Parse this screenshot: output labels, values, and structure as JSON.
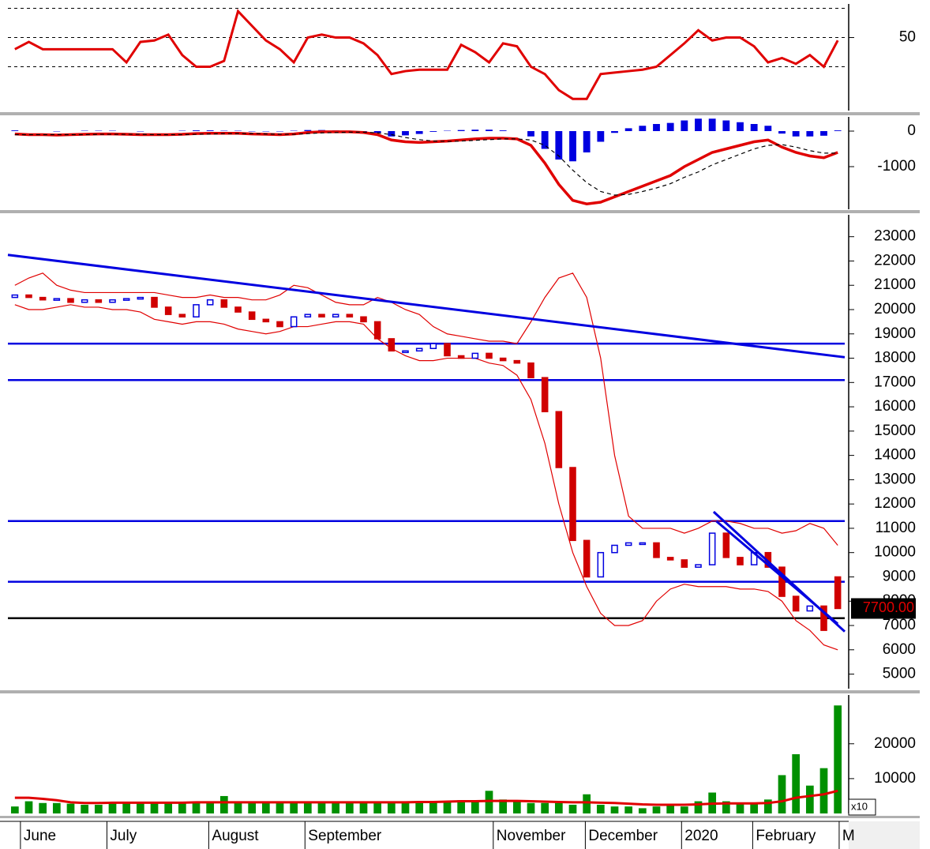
{
  "chart_data": [
    {
      "type": "line",
      "ylim": [
        0,
        73
      ],
      "yticks": [
        50
      ],
      "reference_lines": [
        30,
        50,
        70
      ],
      "series": [
        {
          "color": "#e00000",
          "values": [
            42,
            47,
            42,
            42,
            42,
            42,
            42,
            42,
            33,
            47,
            48,
            52,
            38,
            30,
            30,
            34,
            68,
            58,
            48,
            42,
            33,
            50,
            52,
            50,
            50,
            46,
            38,
            25,
            27,
            28,
            28,
            28,
            45,
            40,
            33,
            46,
            44,
            30,
            25,
            14,
            8,
            8,
            25,
            26,
            27,
            28,
            30,
            38,
            46,
            55,
            48,
            50,
            50,
            44,
            33,
            36,
            32,
            38,
            30,
            48
          ]
        }
      ]
    },
    {
      "type": "macd",
      "ylim": [
        -2200,
        400
      ],
      "yticks": [
        0,
        -1000
      ],
      "histogram": {
        "color": "#0000e0",
        "values": [
          20,
          0,
          0,
          -10,
          0,
          10,
          10,
          10,
          0,
          -10,
          0,
          0,
          10,
          20,
          20,
          10,
          10,
          -10,
          -10,
          -10,
          10,
          30,
          30,
          20,
          10,
          -10,
          -50,
          -150,
          -120,
          -80,
          -20,
          10,
          30,
          40,
          40,
          20,
          0,
          -150,
          -500,
          -800,
          -850,
          -600,
          -300,
          -50,
          80,
          150,
          200,
          230,
          300,
          350,
          350,
          300,
          250,
          200,
          150,
          -70,
          -150,
          -150,
          -130,
          20
        ]
      },
      "series": [
        {
          "color": "#e00000",
          "values": [
            -80,
            -100,
            -100,
            -110,
            -100,
            -90,
            -80,
            -80,
            -90,
            -100,
            -100,
            -100,
            -90,
            -70,
            -60,
            -60,
            -60,
            -80,
            -90,
            -100,
            -80,
            -40,
            -20,
            -20,
            -20,
            -40,
            -100,
            -250,
            -300,
            -320,
            -300,
            -280,
            -250,
            -220,
            -200,
            -200,
            -220,
            -400,
            -900,
            -1500,
            -1950,
            -2050,
            -2000,
            -1850,
            -1700,
            -1550,
            -1400,
            -1250,
            -1000,
            -800,
            -600,
            -500,
            -400,
            -300,
            -250,
            -450,
            -600,
            -700,
            -750,
            -600
          ]
        },
        {
          "color": "#000000",
          "dashed": true,
          "values": [
            -100,
            -100,
            -100,
            -100,
            -100,
            -100,
            -90,
            -90,
            -90,
            -90,
            -100,
            -100,
            -100,
            -90,
            -80,
            -70,
            -70,
            -70,
            -80,
            -90,
            -90,
            -70,
            -50,
            -40,
            -30,
            -30,
            -50,
            -100,
            -180,
            -240,
            -280,
            -290,
            -280,
            -260,
            -240,
            -220,
            -220,
            -250,
            -400,
            -700,
            -1100,
            -1450,
            -1700,
            -1800,
            -1780,
            -1700,
            -1600,
            -1480,
            -1300,
            -1150,
            -950,
            -800,
            -650,
            -500,
            -400,
            -380,
            -450,
            -550,
            -620,
            -620
          ]
        }
      ]
    },
    {
      "type": "candlestick",
      "ylim": [
        4400,
        23900
      ],
      "yticks": [
        5000,
        6000,
        7000,
        8000,
        9000,
        10000,
        11000,
        12000,
        13000,
        14000,
        15000,
        16000,
        17000,
        18000,
        19000,
        20000,
        21000,
        22000,
        23000
      ],
      "up_color": "#0000e0",
      "down_color": "#d00000",
      "open": [
        20500,
        20600,
        20500,
        20400,
        20450,
        20300,
        20400,
        20300,
        20400,
        20450,
        20500,
        20100,
        19800,
        19700,
        20200,
        20400,
        20100,
        19900,
        19600,
        19500,
        19300,
        19700,
        19800,
        19700,
        19800,
        19700,
        19500,
        18800,
        18300,
        18300,
        18400,
        18600,
        18100,
        18000,
        18200,
        18000,
        17900,
        17800,
        17200,
        15800,
        13500,
        10500,
        9000,
        10000,
        10300,
        10400,
        10400,
        9800,
        9700,
        9400,
        9500,
        10800,
        9800,
        9500,
        10000,
        9400,
        8200,
        7600,
        7800,
        9000
      ],
      "close": [
        20600,
        20500,
        20400,
        20450,
        20300,
        20400,
        20300,
        20400,
        20450,
        20500,
        20100,
        19800,
        19700,
        20200,
        20400,
        20100,
        19900,
        19600,
        19500,
        19300,
        19700,
        19800,
        19700,
        19800,
        19700,
        19500,
        18800,
        18300,
        18300,
        18400,
        18600,
        18100,
        18000,
        18200,
        18000,
        17900,
        17800,
        17200,
        15800,
        13500,
        10500,
        9000,
        10000,
        10300,
        10400,
        10400,
        9800,
        9700,
        9400,
        9500,
        10800,
        9800,
        9500,
        10000,
        9400,
        8200,
        7600,
        7800,
        6800,
        7700
      ],
      "bands": [
        {
          "color": "#e00000",
          "values": [
            21000,
            21300,
            21500,
            21000,
            20800,
            20700,
            20700,
            20700,
            20700,
            20700,
            20700,
            20600,
            20500,
            20500,
            20600,
            20500,
            20500,
            20400,
            20400,
            20600,
            21000,
            20900,
            20600,
            20300,
            20200,
            20200,
            20500,
            20300,
            20000,
            19800,
            19300,
            19000,
            18900,
            18800,
            18700,
            18700,
            18600,
            19500,
            20500,
            21300,
            21500,
            20500,
            18000,
            14000,
            11500,
            11000,
            11000,
            11000,
            10800,
            11000,
            11300,
            11300,
            11200,
            11000,
            11000,
            10800,
            10900,
            11200,
            11000,
            10300
          ]
        },
        {
          "color": "#e00000",
          "values": [
            20200,
            20000,
            20000,
            20100,
            20200,
            20100,
            20100,
            20000,
            20000,
            19900,
            19600,
            19500,
            19400,
            19500,
            19500,
            19400,
            19200,
            19100,
            19000,
            19100,
            19300,
            19300,
            19400,
            19500,
            19500,
            19400,
            18800,
            18400,
            18100,
            17900,
            17900,
            18000,
            18000,
            18000,
            17800,
            17700,
            17300,
            16300,
            14500,
            12000,
            10000,
            8600,
            7500,
            7000,
            7000,
            7200,
            8000,
            8500,
            8700,
            8600,
            8600,
            8600,
            8500,
            8500,
            8400,
            8000,
            7200,
            6800,
            6200,
            6000
          ]
        }
      ],
      "hlines": [
        {
          "value": 18600,
          "color": "#0000e0"
        },
        {
          "value": 17100,
          "color": "#0000e0"
        },
        {
          "value": 11300,
          "color": "#0000e0"
        },
        {
          "value": 8800,
          "color": "#0000e0"
        },
        {
          "value": 7300,
          "color": "#000000"
        }
      ],
      "trend_lines": [
        {
          "start": [
            -0.5,
            22250
          ],
          "end": [
            59.5,
            18040
          ],
          "color": "#0000e0"
        },
        {
          "start": [
            50.1,
            11680
          ],
          "end": [
            59.5,
            6750
          ],
          "color": "#0000e0"
        },
        {
          "start": [
            50.3,
            11290
          ],
          "end": [
            59,
            7070
          ],
          "color": "#0000e0"
        }
      ],
      "last_price_label": "7700.00"
    },
    {
      "type": "volume",
      "ylim": [
        0,
        34000
      ],
      "yticks": [
        10000,
        20000
      ],
      "color": "#009000",
      "scale_label": "x10",
      "values": [
        2000,
        3500,
        3000,
        3000,
        2800,
        2500,
        2500,
        3000,
        3000,
        3200,
        3000,
        3000,
        3200,
        3000,
        3000,
        5000,
        3000,
        3000,
        3000,
        3200,
        3500,
        3200,
        3000,
        3000,
        3000,
        3000,
        3000,
        3000,
        3200,
        3300,
        3500,
        3500,
        3800,
        3500,
        6500,
        4000,
        3500,
        3000,
        3000,
        3000,
        2500,
        5500,
        2500,
        2000,
        2000,
        1500,
        2000,
        2500,
        2000,
        3500,
        6000,
        3500,
        3000,
        3000,
        4000,
        11000,
        17000,
        8000,
        13000,
        31000
      ],
      "ma": {
        "color": "#e00000",
        "values": [
          4500,
          4500,
          4200,
          3800,
          3200,
          3000,
          3000,
          3100,
          3100,
          3100,
          3100,
          3100,
          3100,
          3200,
          3200,
          3200,
          3200,
          3200,
          3200,
          3200,
          3200,
          3200,
          3200,
          3200,
          3200,
          3200,
          3200,
          3200,
          3200,
          3300,
          3300,
          3400,
          3500,
          3500,
          3600,
          3600,
          3600,
          3500,
          3400,
          3300,
          3200,
          3200,
          3100,
          3000,
          2800,
          2600,
          2500,
          2500,
          2500,
          2600,
          2800,
          2900,
          2900,
          2900,
          3000,
          3500,
          4500,
          5000,
          5500,
          6500
        ]
      }
    }
  ],
  "x_axis": {
    "xlim": [
      -0.5,
      59.5
    ],
    "x": [
      0,
      1,
      2,
      3,
      4,
      5,
      6,
      7,
      8,
      9,
      10,
      11,
      12,
      13,
      14,
      15,
      16,
      17,
      18,
      19,
      20,
      21,
      22,
      23,
      24,
      25,
      26,
      27,
      28,
      29,
      30,
      31,
      32,
      33,
      34,
      35,
      36,
      37,
      38,
      39,
      40,
      41,
      42,
      43,
      44,
      45,
      46,
      47,
      48,
      49,
      50,
      51,
      52,
      53,
      54,
      55,
      56,
      57,
      58,
      59
    ],
    "xticks": [
      {
        "value": 0.4,
        "label": "June"
      },
      {
        "value": 6.6,
        "label": "July"
      },
      {
        "value": 13.9,
        "label": "August"
      },
      {
        "value": 20.8,
        "label": "September"
      },
      {
        "value": 34.3,
        "label": "November"
      },
      {
        "value": 40.9,
        "label": "December"
      },
      {
        "value": 47.8,
        "label": "2020"
      },
      {
        "value": 52.9,
        "label": "February"
      },
      {
        "value": 59.1,
        "label": "M"
      }
    ]
  }
}
